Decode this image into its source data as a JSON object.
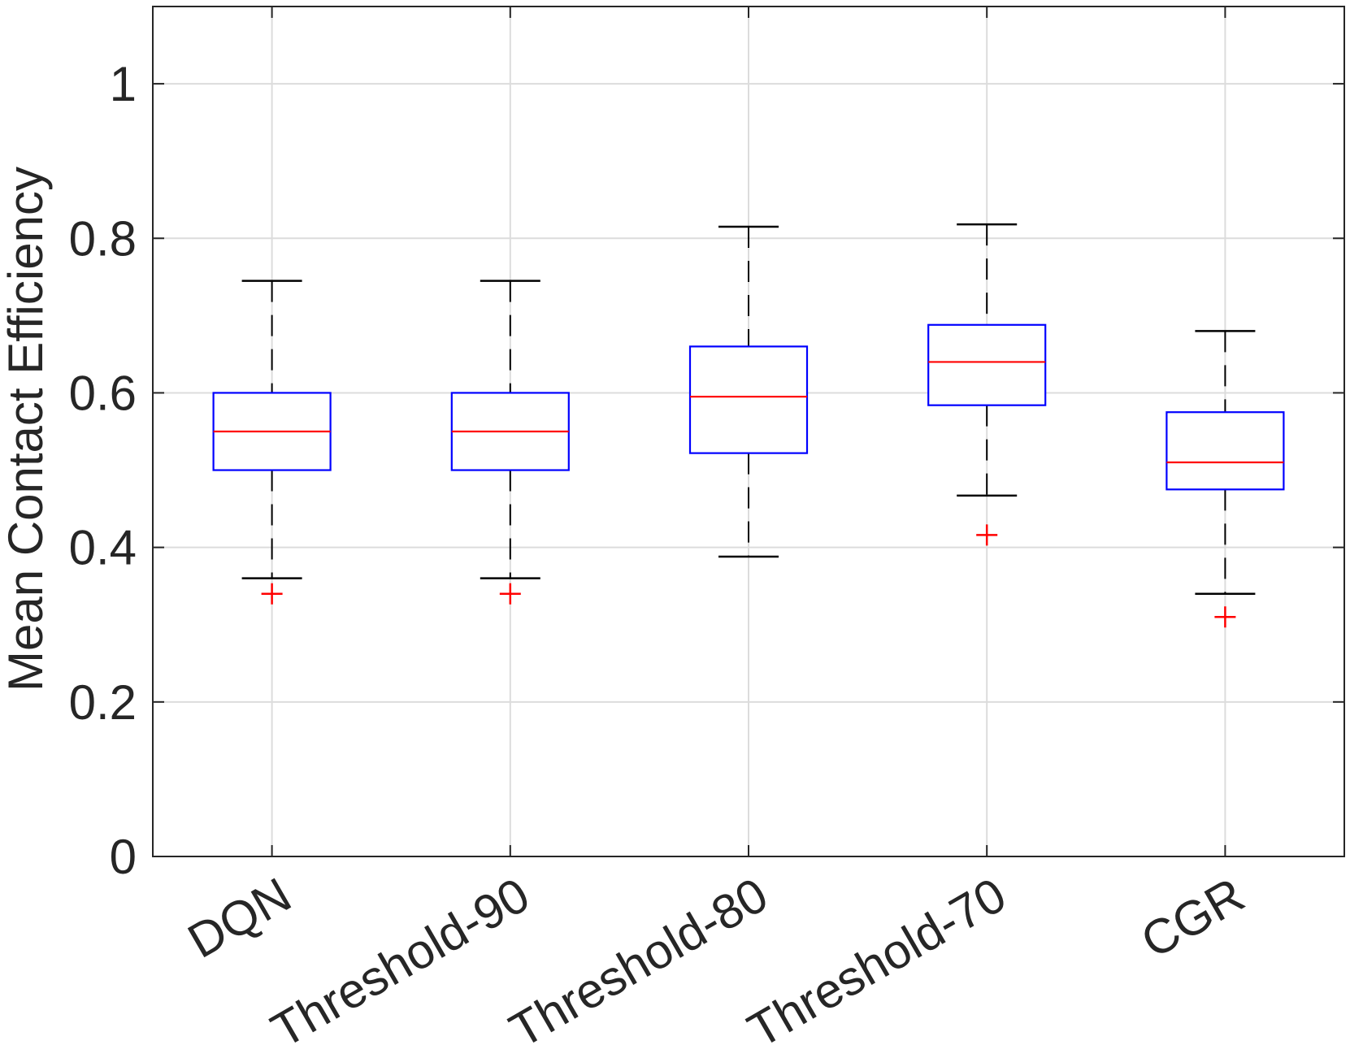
{
  "chart_data": {
    "type": "box",
    "title": "",
    "xlabel": "",
    "ylabel": "Mean Contact Efficiency",
    "ylim": [
      0,
      1.1
    ],
    "yticks": [
      0,
      0.2,
      0.4,
      0.6,
      0.8,
      1
    ],
    "ytick_labels": [
      "0",
      "0.2",
      "0.4",
      "0.6",
      "0.8",
      "1"
    ],
    "grid": true,
    "categories": [
      "DQN",
      "Threshold-90",
      "Threshold-80",
      "Threshold-70",
      "CGR"
    ],
    "boxes": [
      {
        "name": "DQN",
        "whisker_low": 0.36,
        "q1": 0.5,
        "median": 0.55,
        "q3": 0.6,
        "whisker_high": 0.745,
        "outliers": [
          0.34
        ]
      },
      {
        "name": "Threshold-90",
        "whisker_low": 0.36,
        "q1": 0.5,
        "median": 0.55,
        "q3": 0.6,
        "whisker_high": 0.745,
        "outliers": [
          0.34
        ]
      },
      {
        "name": "Threshold-80",
        "whisker_low": 0.388,
        "q1": 0.522,
        "median": 0.595,
        "q3": 0.66,
        "whisker_high": 0.815,
        "outliers": []
      },
      {
        "name": "Threshold-70",
        "whisker_low": 0.467,
        "q1": 0.584,
        "median": 0.64,
        "q3": 0.688,
        "whisker_high": 0.818,
        "outliers": [
          0.416
        ]
      },
      {
        "name": "CGR",
        "whisker_low": 0.34,
        "q1": 0.475,
        "median": 0.51,
        "q3": 0.575,
        "whisker_high": 0.68,
        "outliers": [
          0.31
        ]
      }
    ],
    "colors": {
      "box": "#0000ff",
      "median": "#ff0000",
      "whisker": "#000000",
      "outlier": "#ff0000",
      "grid": "#dcdcdc",
      "axis": "#262626"
    }
  }
}
